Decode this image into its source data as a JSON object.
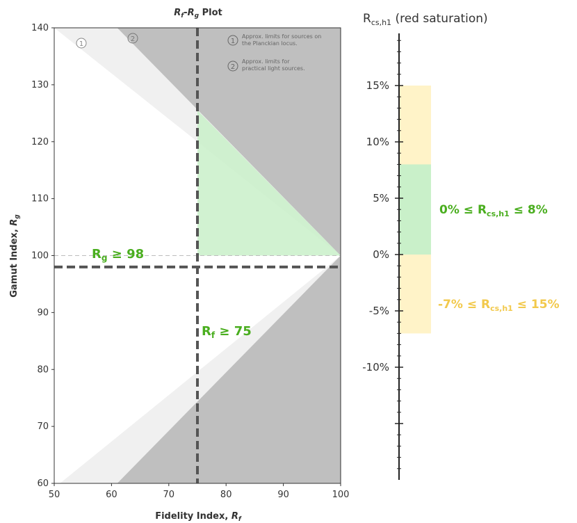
{
  "chart_data": [
    {
      "type": "area",
      "title": {
        "main_a": "R",
        "sub_a": "f",
        "dash": "-",
        "main_b": "R",
        "sub_b": "g",
        "suffix": " Plot"
      },
      "xlabel": {
        "text": "Fidelity Index, ",
        "sym": "R",
        "sub": "f"
      },
      "ylabel": {
        "text": "Gamut Index, ",
        "sym": "R",
        "sub": "g"
      },
      "xlim": [
        50,
        100
      ],
      "ylim": [
        60,
        140
      ],
      "xticks": [
        "50",
        "60",
        "70",
        "80",
        "90",
        "100"
      ],
      "yticks": [
        "60",
        "70",
        "80",
        "90",
        "100",
        "110",
        "120",
        "130",
        "140"
      ],
      "reference_line": {
        "y": 100
      },
      "limits": [
        {
          "id": "1",
          "label_line1": "Approx. limits for sources on",
          "label_line2": "the Planckian locus.",
          "upper": [
            [
              50,
              140
            ],
            [
              100,
              100
            ]
          ],
          "lower": [
            [
              51,
              60
            ],
            [
              100,
              100
            ]
          ],
          "color": "#f0f0f0"
        },
        {
          "id": "2",
          "label_line1": "Approx. limits for",
          "label_line2": "practical light sources.",
          "upper": [
            [
              61,
              140
            ],
            [
              100,
              100
            ]
          ],
          "lower": [
            [
              61,
              60
            ],
            [
              100,
              100
            ]
          ],
          "color": "#bfbfbf"
        }
      ],
      "criteria": {
        "rf_min": 75,
        "rg_min": 98,
        "rf_label": {
          "sym": "R",
          "sub": "f",
          "rest": " ≥ 75"
        },
        "rg_label": {
          "sym": "R",
          "sub": "g",
          "rest": " ≥ 98"
        }
      },
      "accepted_region": {
        "polygon": [
          [
            75,
            100
          ],
          [
            75,
            125.5
          ],
          [
            100,
            100
          ]
        ],
        "color": "#c9f0c9"
      }
    },
    {
      "type": "bar",
      "title": {
        "sym": "R",
        "sub": "cs,h1",
        "rest": " (red saturation)"
      },
      "ylim": [
        -20,
        20
      ],
      "yticks": [
        {
          "value": 15,
          "label": "15%"
        },
        {
          "value": 10,
          "label": "10%"
        },
        {
          "value": 5,
          "label": "5%"
        },
        {
          "value": 0,
          "label": "0%"
        },
        {
          "value": -5,
          "label": "-5%"
        },
        {
          "value": -10,
          "label": "-10%"
        }
      ],
      "ranges": [
        {
          "min": -7,
          "max": 15,
          "color": "#fff3c8",
          "label": {
            "pre": "-7% ≤ ",
            "sym": "R",
            "sub": "cs,h1",
            "post": " ≤ 15%"
          }
        },
        {
          "min": 0,
          "max": 8,
          "color": "#c9f0c9",
          "label": {
            "pre": "0% ≤ ",
            "sym": "R",
            "sub": "cs,h1",
            "post": " ≤ 8%"
          }
        }
      ]
    }
  ]
}
